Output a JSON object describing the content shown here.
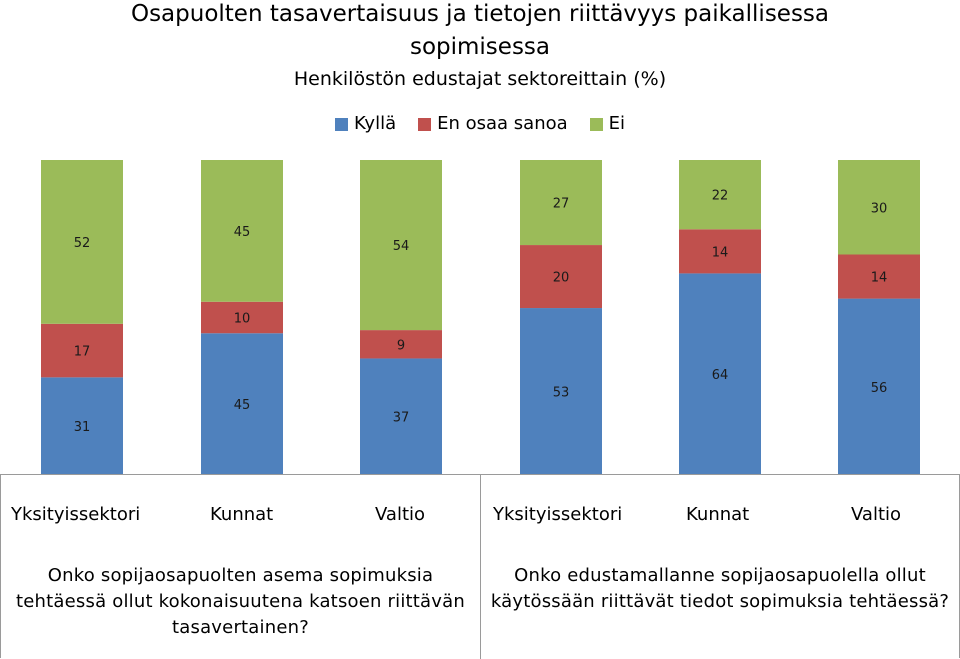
{
  "chart_data": {
    "type": "bar",
    "stacked": true,
    "title": "Osapuolten tasavertaisuus ja tietojen riittävyys paikallisessa sopimisessa",
    "title_line1": "Osapuolten tasavertaisuus ja tietojen riittävyys paikallisessa",
    "title_line2": "sopimisessa",
    "subtitle": "Henkilöstön edustajat sektoreittain (%)",
    "categories": [
      "Yksityissektori",
      "Kunnat",
      "Valtio",
      "Yksityissektori",
      "Kunnat",
      "Valtio"
    ],
    "series": [
      {
        "name": "Kyllä",
        "color": "#4f81bd",
        "values": [
          31,
          45,
          37,
          53,
          64,
          56
        ]
      },
      {
        "name": "En osaa sanoa",
        "color": "#c0504d",
        "values": [
          17,
          10,
          9,
          20,
          14,
          14
        ]
      },
      {
        "name": "Ei",
        "color": "#9bbb59",
        "values": [
          52,
          45,
          54,
          27,
          22,
          30
        ]
      }
    ],
    "legend_position": "top",
    "groups": [
      {
        "question": "Onko sopijaosapuolten asema sopimuksia tehtäessä ollut kokonaisuutena katsoen riittävän tasavertainen?",
        "question_lines": [
          "Onko sopijaosapuolten asema sopimuksia",
          "tehtäessä ollut kokonaisuutena katsoen riittävän",
          "tasavertainen?"
        ],
        "labels": [
          "Yksityissektori",
          "Kunnat",
          "Valtio"
        ]
      },
      {
        "question": "Onko edustamallanne sopijaosapuolella ollut käytössään riittävät tiedot sopimuksia tehtäessä?",
        "question_lines": [
          "Onko edustamallanne sopijaosapuolella ollut",
          "käytössään riittävät tiedot sopimuksia tehtäessä?"
        ],
        "labels": [
          "Yksityissektori",
          "Kunnat",
          "Valtio"
        ]
      }
    ]
  }
}
